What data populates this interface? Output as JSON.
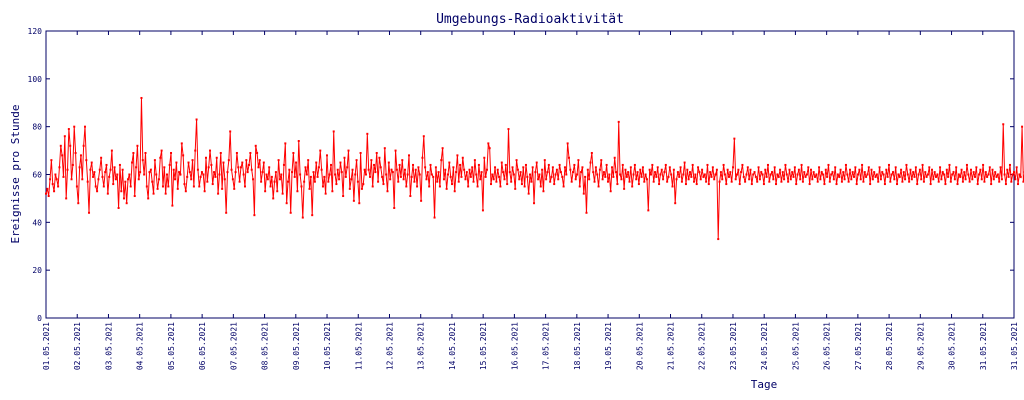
{
  "chart_data": {
    "type": "line",
    "title": "Umgebungs-Radioaktivität",
    "xlabel": "Tage",
    "ylabel": "Ereignisse pro Stunde",
    "ylim": [
      0,
      120
    ],
    "yticks": [
      0,
      20,
      40,
      60,
      80,
      100,
      120
    ],
    "xlim": [
      0,
      30
    ],
    "x_tick_labels": [
      "01.05.2021",
      "02.05.2021",
      "03.05.2021",
      "04.05.2021",
      "05.05.2021",
      "06.05.2021",
      "07.05.2021",
      "08.05.2021",
      "09.05.2021",
      "10.05.2021",
      "11.05.2021",
      "12.05.2021",
      "13.05.2021",
      "14.05.2021",
      "15.05.2021",
      "16.05.2021",
      "17.05.2021",
      "18.05.2021",
      "19.05.2021",
      "20.05.2021",
      "21.05.2021",
      "22.05.2021",
      "23.05.2021",
      "24.05.2021",
      "25.05.2021",
      "26.05.2021",
      "27.05.2021",
      "28.05.2021",
      "29.05.2021",
      "30.05.2021",
      "31.05.2021",
      "31.05.2021"
    ],
    "grid": false,
    "series": [
      {
        "color": "#ff0000",
        "points_per_day": 24,
        "values": [
          52,
          54,
          51,
          58,
          66,
          56,
          53,
          60,
          58,
          55,
          63,
          72,
          68,
          59,
          76,
          50,
          62,
          79,
          72,
          58,
          64,
          80,
          69,
          55,
          48,
          63,
          68,
          58,
          72,
          80,
          66,
          57,
          44,
          62,
          65,
          59,
          61,
          55,
          53,
          58,
          62,
          67,
          59,
          55,
          61,
          64,
          52,
          59,
          62,
          70,
          56,
          63,
          58,
          60,
          46,
          64,
          53,
          62,
          50,
          57,
          48,
          58,
          60,
          55,
          65,
          69,
          51,
          63,
          72,
          58,
          61,
          92,
          66,
          60,
          69,
          55,
          50,
          61,
          62,
          57,
          52,
          66,
          60,
          54,
          58,
          67,
          70,
          55,
          63,
          52,
          60,
          55,
          64,
          69,
          47,
          62,
          58,
          65,
          54,
          61,
          60,
          73,
          68,
          56,
          53,
          59,
          65,
          61,
          58,
          66,
          55,
          70,
          83,
          62,
          55,
          59,
          61,
          60,
          53,
          67,
          57,
          63,
          70,
          64,
          56,
          61,
          59,
          67,
          52,
          60,
          69,
          54,
          65,
          58,
          44,
          61,
          66,
          78,
          62,
          58,
          54,
          61,
          69,
          63,
          57,
          63,
          65,
          60,
          55,
          66,
          61,
          64,
          69,
          62,
          58,
          43,
          72,
          69,
          63,
          66,
          57,
          61,
          65,
          53,
          60,
          58,
          63,
          55,
          59,
          50,
          57,
          61,
          53,
          66,
          58,
          60,
          52,
          64,
          73,
          48,
          57,
          62,
          44,
          61,
          69,
          59,
          65,
          53,
          74,
          60,
          55,
          42,
          57,
          63,
          60,
          66,
          54,
          59,
          43,
          61,
          57,
          65,
          59,
          63,
          70,
          62,
          55,
          59,
          52,
          68,
          57,
          60,
          64,
          53,
          78,
          60,
          56,
          62,
          58,
          65,
          61,
          51,
          67,
          59,
          63,
          70,
          54,
          58,
          62,
          49,
          60,
          66,
          57,
          48,
          69,
          54,
          56,
          62,
          60,
          77,
          62,
          59,
          66,
          55,
          64,
          61,
          69,
          57,
          67,
          63,
          59,
          56,
          71,
          60,
          53,
          65,
          58,
          62,
          61,
          46,
          70,
          62,
          57,
          64,
          59,
          66,
          58,
          62,
          55,
          60,
          68,
          51,
          59,
          64,
          57,
          62,
          55,
          63,
          60,
          49,
          67,
          76,
          63,
          58,
          61,
          55,
          64,
          60,
          59,
          42,
          63,
          57,
          61,
          55,
          66,
          71,
          58,
          62,
          54,
          60,
          65,
          59,
          56,
          63,
          53,
          61,
          68,
          57,
          64,
          59,
          67,
          62,
          58,
          61,
          55,
          62,
          59,
          63,
          57,
          66,
          60,
          55,
          64,
          58,
          61,
          45,
          67,
          59,
          62,
          73,
          71,
          56,
          60,
          58,
          63,
          57,
          62,
          59,
          55,
          65,
          61,
          58,
          64,
          56,
          79,
          61,
          57,
          63,
          60,
          54,
          66,
          62,
          58,
          61,
          56,
          63,
          55,
          64,
          59,
          52,
          60,
          57,
          63,
          48,
          61,
          65,
          58,
          60,
          55,
          62,
          53,
          66,
          58,
          61,
          64,
          57,
          59,
          63,
          56,
          60,
          62,
          58,
          64,
          61,
          59,
          55,
          63,
          60,
          73,
          67,
          62,
          57,
          61,
          64,
          58,
          60,
          66,
          55,
          61,
          63,
          52,
          59,
          44,
          62,
          58,
          65,
          69,
          61,
          57,
          63,
          60,
          55,
          62,
          66,
          58,
          61,
          59,
          64,
          57,
          60,
          53,
          63,
          59,
          67,
          61,
          56,
          82,
          60,
          58,
          64,
          54,
          62,
          59,
          61,
          57,
          63,
          55,
          60,
          64,
          58,
          61,
          56,
          62,
          59,
          63,
          57,
          60,
          58,
          45,
          62,
          60,
          64,
          57,
          61,
          59,
          63,
          56,
          60,
          62,
          58,
          61,
          64,
          57,
          59,
          63,
          60,
          55,
          62,
          48,
          58,
          61,
          59,
          63,
          57,
          60,
          65,
          56,
          62,
          58,
          61,
          59,
          64,
          57,
          60,
          56,
          63,
          61,
          58,
          62,
          59,
          60,
          57,
          64,
          56,
          61,
          59,
          63,
          58,
          60,
          62,
          33,
          57,
          61,
          58,
          64,
          60,
          56,
          62,
          59,
          61,
          57,
          63,
          75,
          58,
          60,
          62,
          56,
          61,
          64,
          59,
          57,
          60,
          63,
          58,
          62,
          56,
          60,
          61,
          59,
          57,
          63,
          58,
          61,
          60,
          56,
          62,
          59,
          64,
          57,
          60,
          61,
          58,
          63,
          56,
          60,
          59,
          62,
          57,
          61,
          58,
          64,
          60,
          57,
          62,
          58,
          61,
          59,
          63,
          56,
          60,
          62,
          58,
          64,
          57,
          61,
          59,
          60,
          63,
          56,
          62,
          58,
          61,
          59,
          60,
          57,
          63,
          58,
          61,
          60,
          56,
          62,
          59,
          64,
          57,
          60,
          61,
          58,
          63,
          56,
          60,
          59,
          62,
          57,
          61,
          58,
          64,
          60,
          57,
          62,
          58,
          61,
          59,
          63,
          56,
          60,
          62,
          58,
          64,
          57,
          61,
          59,
          60,
          63,
          56,
          62,
          58,
          61,
          59,
          60,
          57,
          63,
          58,
          61,
          60,
          56,
          62,
          59,
          64,
          57,
          60,
          61,
          58,
          63,
          56,
          60,
          59,
          62,
          57,
          61,
          58,
          64,
          60,
          57,
          62,
          58,
          61,
          59,
          63,
          56,
          60,
          62,
          58,
          64,
          57,
          61,
          59,
          60,
          63,
          56,
          62,
          58,
          61,
          59,
          60,
          57,
          63,
          58,
          61,
          60,
          56,
          62,
          59,
          64,
          57,
          60,
          61,
          58,
          63,
          56,
          60,
          59,
          62,
          57,
          61,
          58,
          64,
          60,
          57,
          62,
          58,
          61,
          59,
          63,
          56,
          60,
          62,
          58,
          64,
          57,
          61,
          59,
          60,
          63,
          56,
          62,
          58,
          61,
          59,
          60,
          57,
          63,
          58,
          81,
          60,
          56,
          62,
          59,
          64,
          57,
          60,
          61,
          58,
          63,
          56,
          60,
          59,
          80,
          57,
          61,
          58,
          64,
          60,
          74
        ]
      }
    ]
  }
}
